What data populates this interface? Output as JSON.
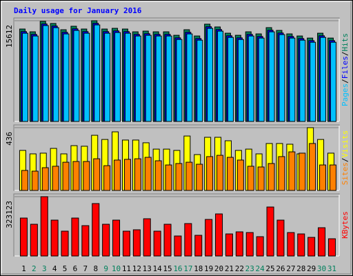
{
  "chart_data": [
    {
      "type": "bar",
      "title": "Daily usage for January 2016",
      "legend_separator": "/",
      "series": [
        {
          "name": "Hits",
          "color": "#00805c",
          "values": [
            14324,
            13893,
            15509,
            15186,
            14216,
            14755,
            14324,
            15612,
            14324,
            14432,
            14324,
            13893,
            14001,
            13893,
            13893,
            13355,
            14216,
            13247,
            15078,
            14647,
            13678,
            13355,
            13893,
            13570,
            14540,
            14109,
            13570,
            13247,
            12924,
            13678,
            12924
          ]
        },
        {
          "name": "Files",
          "color": "#0000ff",
          "values": [
            13924,
            13493,
            15109,
            14786,
            13816,
            14355,
            13924,
            15212,
            13924,
            14032,
            13924,
            13493,
            13601,
            13493,
            13493,
            12955,
            13816,
            12847,
            14678,
            14247,
            13278,
            12955,
            13493,
            13170,
            14140,
            13709,
            13170,
            12847,
            12524,
            13278,
            12524
          ]
        },
        {
          "name": "Pages",
          "color": "#00c0ff",
          "values": [
            13674,
            13243,
            14859,
            14536,
            13566,
            14105,
            13674,
            14962,
            13674,
            13782,
            13674,
            13243,
            13351,
            13243,
            13243,
            12705,
            13566,
            12597,
            14428,
            13997,
            13028,
            12705,
            13243,
            12920,
            13890,
            13459,
            12920,
            12597,
            12274,
            13028,
            12274
          ]
        }
      ],
      "ylim": [
        0,
        15612
      ],
      "yticks": [
        15612
      ]
    },
    {
      "type": "bar",
      "series": [
        {
          "name": "Visits",
          "color": "#ffff00",
          "values": [
            278,
            254,
            259,
            292,
            254,
            311,
            307,
            383,
            354,
            407,
            350,
            350,
            331,
            287,
            287,
            278,
            378,
            249,
            369,
            369,
            345,
            278,
            287,
            254,
            326,
            326,
            321,
            254,
            436,
            354,
            259
          ]
        },
        {
          "name": "Sites",
          "color": "#ff8000",
          "values": [
            139,
            134,
            158,
            168,
            196,
            201,
            201,
            220,
            172,
            211,
            216,
            220,
            230,
            206,
            177,
            187,
            196,
            182,
            235,
            244,
            230,
            211,
            168,
            163,
            187,
            235,
            268,
            259,
            326,
            177,
            177
          ]
        }
      ],
      "ylim": [
        0,
        436
      ],
      "yticks": [
        436
      ]
    },
    {
      "type": "bar",
      "categories": [
        "1",
        "2",
        "3",
        "4",
        "5",
        "6",
        "7",
        "8",
        "9",
        "10",
        "11",
        "12",
        "13",
        "14",
        "15",
        "16",
        "17",
        "18",
        "19",
        "20",
        "21",
        "22",
        "23",
        "24",
        "25",
        "26",
        "27",
        "28",
        "29",
        "30",
        "31"
      ],
      "category_colors": [
        "#000000",
        "#00805c",
        "#00805c",
        "#000000",
        "#000000",
        "#000000",
        "#000000",
        "#000000",
        "#00805c",
        "#00805c",
        "#000000",
        "#000000",
        "#000000",
        "#000000",
        "#000000",
        "#00805c",
        "#00805c",
        "#000000",
        "#000000",
        "#000000",
        "#000000",
        "#000000",
        "#00805c",
        "#00805c",
        "#000000",
        "#000000",
        "#000000",
        "#000000",
        "#000000",
        "#00805c",
        "#00805c"
      ],
      "series": [
        {
          "name": "KBytes",
          "color": "#ff0000",
          "values": [
            206635,
            172822,
            323123,
            195364,
            135252,
            206635,
            165308,
            285532,
            172822,
            195364,
            135252,
            142766,
            202878,
            135252,
            172822,
            108953,
            176579,
            112710,
            199121,
            229177,
            120224,
            131495,
            127738,
            105196,
            266747,
            195364,
            127738,
            120224,
            101439,
            154037,
            93925
          ]
        }
      ],
      "ylim": [
        0,
        323123
      ],
      "yticks": [
        323123
      ]
    }
  ]
}
